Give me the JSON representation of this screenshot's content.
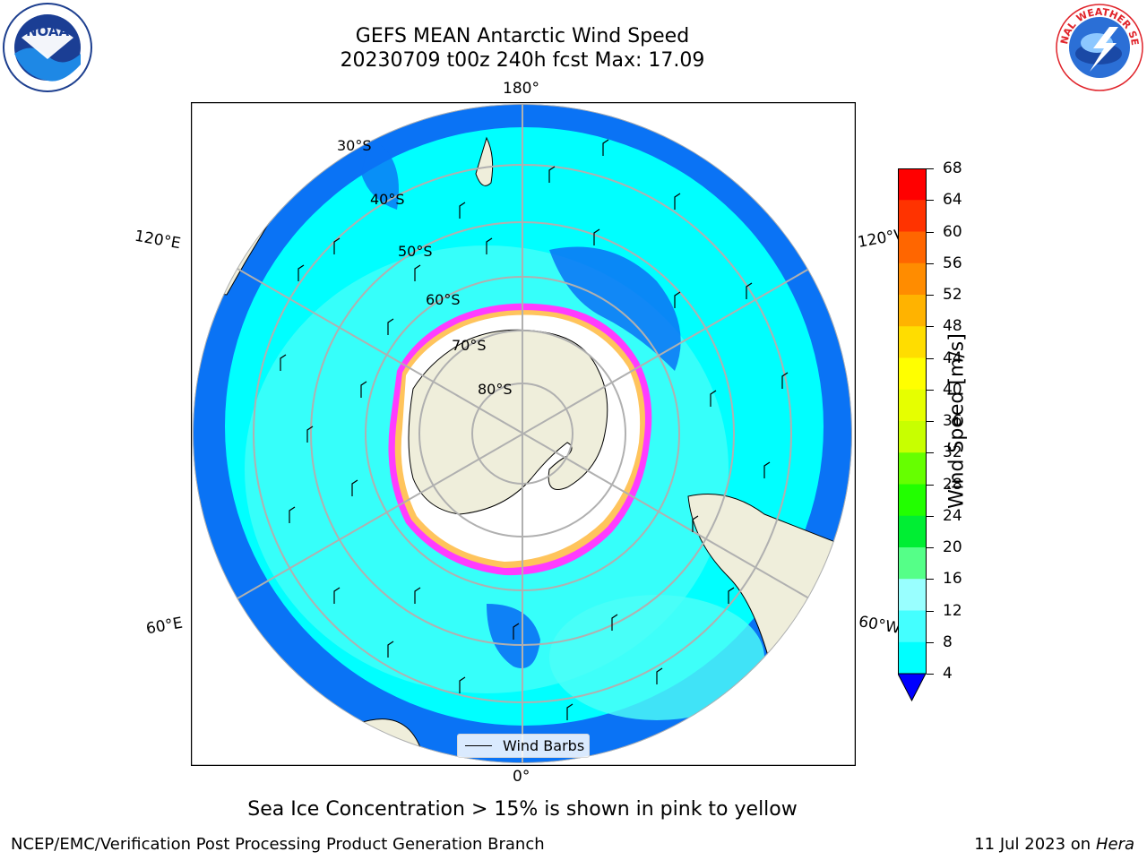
{
  "title": {
    "line1": "GEFS MEAN Antarctic Wind Speed",
    "line2": "20230709 t00z 240h fcst   Max: 17.09"
  },
  "map": {
    "lon_labels": {
      "top": "180°",
      "bottom": "0°",
      "left_upper": "120°E",
      "left_lower": "60°E",
      "right_upper": "120°W",
      "right_lower": "60°W"
    },
    "lat_labels": [
      "30°S",
      "40°S",
      "50°S",
      "60°S",
      "70°S",
      "80°S"
    ],
    "legend_label": "Wind Barbs",
    "colors": {
      "land": "#efeedb",
      "ocean_4_8": "#0a73f5",
      "ocean_8_12": "#00ffff",
      "ocean_12_16": "#4dfff8",
      "ice": "#ffffff",
      "sea_ice_edge": "#ff3cff"
    }
  },
  "colorbar": {
    "label": "Wind Speed [m/s]",
    "ticks": [
      "68",
      "64",
      "60",
      "56",
      "52",
      "48",
      "44",
      "40",
      "36",
      "32",
      "28",
      "24",
      "20",
      "16",
      "12",
      "8",
      "4"
    ],
    "colors": [
      "#ff0000",
      "#ff3300",
      "#ff6600",
      "#ff8c00",
      "#ffb300",
      "#ffdd00",
      "#ffff00",
      "#e6ff00",
      "#c8ff00",
      "#66ff00",
      "#22ff00",
      "#00ee33",
      "#55ff88",
      "#99ffff",
      "#44ffff",
      "#00ffff",
      "#0a73f5"
    ],
    "extend_color": "#0000ff"
  },
  "caption": "Sea Ice Concentration > 15% is shown in pink to yellow",
  "footer": {
    "left": "NCEP/EMC/Verification Post Processing Product Generation Branch",
    "right_date": "11 Jul 2023 on ",
    "right_host": "Hera"
  },
  "logos": {
    "noaa": "NOAA",
    "nws": "NATIONAL WEATHER SERVICE"
  }
}
